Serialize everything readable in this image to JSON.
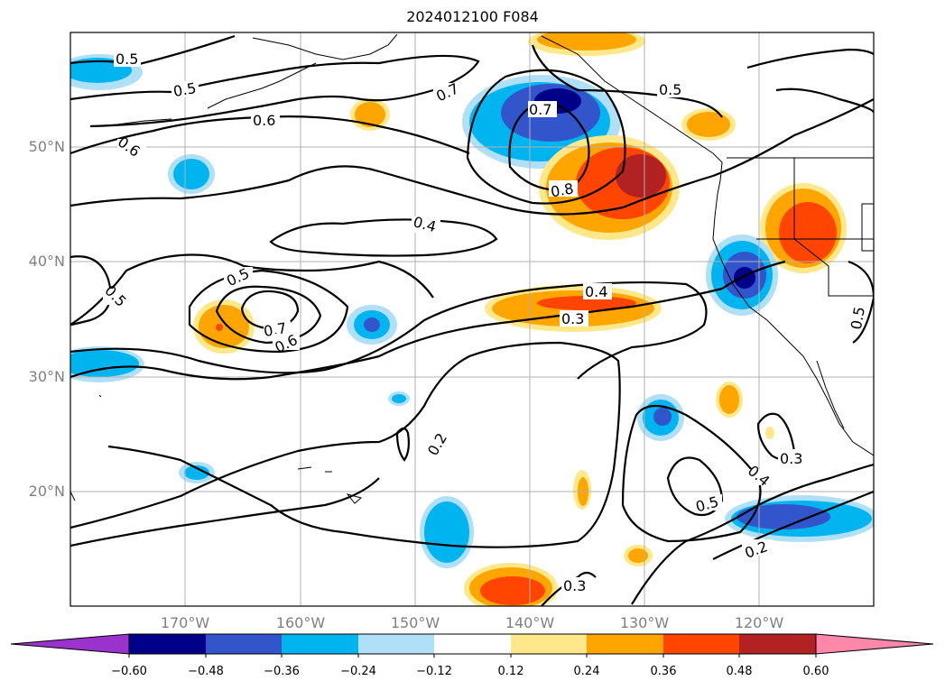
{
  "title": "2024012100 F084",
  "map": {
    "projection": "cylindrical",
    "lon_range": [
      -180,
      -110
    ],
    "lat_range": [
      10,
      60
    ],
    "graticule": true,
    "lat_labels": [
      "50°N",
      "40°N",
      "30°N",
      "20°N"
    ],
    "lon_labels": [
      "170°W",
      "160°W",
      "150°W",
      "140°W",
      "130°W",
      "120°W"
    ],
    "contour_color": "#000000",
    "contour_labels": [
      "0.5",
      "0.5",
      "0.7",
      "0.5",
      "0.6",
      "0.6",
      "0.7",
      "0.8",
      "0.4",
      "0.5",
      "0.5",
      "0.4",
      "0.7",
      "0.6",
      "0.3",
      "0.5",
      "0.2",
      "0.4",
      "0.3",
      "0.5",
      "0.2",
      "0.3"
    ]
  },
  "colorbar": {
    "ticks": [
      "−0.60",
      "−0.48",
      "−0.36",
      "−0.24",
      "−0.12",
      "0.12",
      "0.24",
      "0.36",
      "0.48",
      "0.60"
    ],
    "colors": [
      "#9933cc",
      "#000088",
      "#3355cc",
      "#00b4f0",
      "#b0e0f8",
      "#ffffff",
      "#ffe88a",
      "#ffa500",
      "#ff4500",
      "#b22222",
      "#ff88aa"
    ]
  },
  "fill_colors": {
    "neg_light": "#b0e0f8",
    "neg_1": "#00b4f0",
    "neg_2": "#3355cc",
    "neg_3": "#000088",
    "pos_light": "#ffe88a",
    "pos_1": "#ffa500",
    "pos_2": "#ff4500",
    "pos_3": "#b22222"
  }
}
